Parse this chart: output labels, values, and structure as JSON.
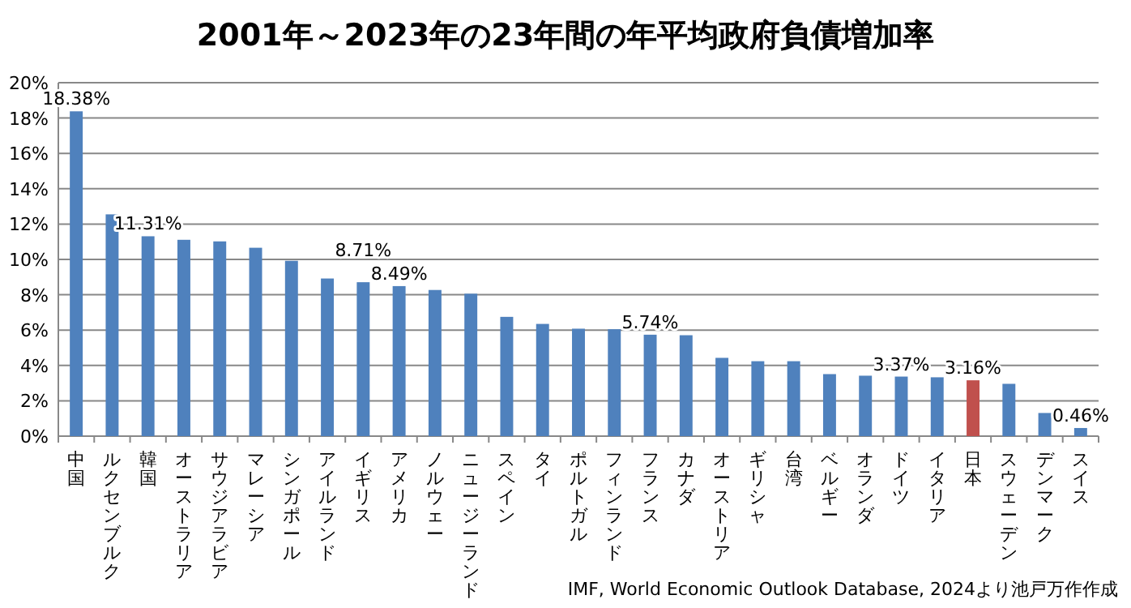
{
  "chart_data": {
    "type": "bar",
    "title": "2001年～2023年の23年間の年平均政府負債増加率",
    "categories": [
      "中国",
      "ルクセンブルク",
      "韓国",
      "オーストラリア",
      "サウジアラビア",
      "マレーシア",
      "シンガポール",
      "アイルランド",
      "イギリス",
      "アメリカ",
      "ノルウェー",
      "ニュージーランド",
      "スペイン",
      "タイ",
      "ポルトガル",
      "フィンランド",
      "フランス",
      "カナダ",
      "オーストリア",
      "ギリシャ",
      "台湾",
      "ベルギー",
      "オランダ",
      "ドイツ",
      "イタリア",
      "日本",
      "スウェーデン",
      "デンマーク",
      "スイス"
    ],
    "values": [
      18.38,
      12.55,
      11.31,
      11.11,
      11.02,
      10.66,
      9.92,
      8.92,
      8.71,
      8.49,
      8.27,
      8.06,
      6.75,
      6.35,
      6.08,
      6.05,
      5.74,
      5.71,
      4.43,
      4.24,
      4.24,
      3.51,
      3.42,
      3.37,
      3.33,
      3.16,
      2.96,
      1.31,
      0.46
    ],
    "colors": [
      "#4f81bd",
      "#4f81bd",
      "#4f81bd",
      "#4f81bd",
      "#4f81bd",
      "#4f81bd",
      "#4f81bd",
      "#4f81bd",
      "#4f81bd",
      "#4f81bd",
      "#4f81bd",
      "#4f81bd",
      "#4f81bd",
      "#4f81bd",
      "#4f81bd",
      "#4f81bd",
      "#4f81bd",
      "#4f81bd",
      "#4f81bd",
      "#4f81bd",
      "#4f81bd",
      "#4f81bd",
      "#4f81bd",
      "#4f81bd",
      "#4f81bd",
      "#c0504d",
      "#4f81bd",
      "#4f81bd",
      "#4f81bd"
    ],
    "value_labels": [
      "18.38%",
      null,
      "11.31%",
      null,
      null,
      null,
      null,
      null,
      "8.71%",
      "8.49%",
      null,
      null,
      null,
      null,
      null,
      null,
      "5.74%",
      null,
      null,
      null,
      null,
      null,
      null,
      "3.37%",
      null,
      "3.16%",
      null,
      null,
      "0.46%"
    ],
    "ylim": [
      0,
      20
    ],
    "yticks": [
      {
        "value": 0,
        "label": "0%"
      },
      {
        "value": 2,
        "label": "2%"
      },
      {
        "value": 4,
        "label": "4%"
      },
      {
        "value": 6,
        "label": "6%"
      },
      {
        "value": 8,
        "label": "8%"
      },
      {
        "value": 10,
        "label": "10%"
      },
      {
        "value": 12,
        "label": "12%"
      },
      {
        "value": 14,
        "label": "14%"
      },
      {
        "value": 16,
        "label": "16%"
      },
      {
        "value": 18,
        "label": "18%"
      },
      {
        "value": 20,
        "label": "20%"
      }
    ],
    "grid": "y",
    "annotations": [
      "IMF, World Economic Outlook Database, 2024より池戸万作作成"
    ]
  }
}
